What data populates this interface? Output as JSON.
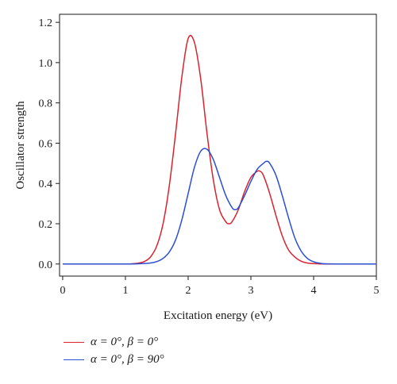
{
  "chart_data": {
    "type": "line",
    "title": "",
    "xlabel": "Excitation energy (eV)",
    "ylabel": "Oscillator strength",
    "xlim": [
      -0.05,
      5.0
    ],
    "ylim": [
      -0.06,
      1.24
    ],
    "x_ticks": [
      0,
      1,
      2,
      3,
      4,
      5
    ],
    "x_tick_labels": [
      "0",
      "1",
      "2",
      "3",
      "4",
      "5"
    ],
    "y_ticks": [
      0.0,
      0.2,
      0.4,
      0.6,
      0.8,
      1.0,
      1.2
    ],
    "y_tick_labels": [
      "0.0",
      "0.2",
      "0.4",
      "0.6",
      "0.8",
      "1.0",
      "1.2"
    ],
    "grid": false,
    "legend_position": "bottom-left",
    "series": [
      {
        "name": "α = 0°, β = 0°",
        "color": "#d9232e",
        "x": [
          0.0,
          0.5,
          1.0,
          1.1,
          1.2,
          1.3,
          1.4,
          1.5,
          1.6,
          1.7,
          1.8,
          1.9,
          2.0,
          2.1,
          2.2,
          2.3,
          2.4,
          2.5,
          2.6,
          2.65,
          2.7,
          2.8,
          2.9,
          3.0,
          3.1,
          3.15,
          3.2,
          3.3,
          3.4,
          3.5,
          3.6,
          3.7,
          3.8,
          3.9,
          4.0,
          4.2,
          4.5,
          5.0
        ],
        "y": [
          0.0,
          0.0,
          0.0,
          0.001,
          0.004,
          0.012,
          0.035,
          0.09,
          0.2,
          0.39,
          0.65,
          0.93,
          1.12,
          1.1,
          0.92,
          0.65,
          0.42,
          0.27,
          0.21,
          0.2,
          0.21,
          0.27,
          0.36,
          0.43,
          0.46,
          0.46,
          0.44,
          0.35,
          0.24,
          0.14,
          0.07,
          0.035,
          0.014,
          0.005,
          0.002,
          0.0,
          0.0,
          0.0
        ]
      },
      {
        "name": "α = 0°, β = 90°",
        "color": "#2b4fd4",
        "x": [
          0.0,
          0.5,
          1.0,
          1.2,
          1.4,
          1.5,
          1.6,
          1.7,
          1.8,
          1.9,
          2.0,
          2.1,
          2.2,
          2.3,
          2.4,
          2.5,
          2.6,
          2.7,
          2.75,
          2.8,
          2.9,
          3.0,
          3.1,
          3.2,
          3.25,
          3.3,
          3.4,
          3.5,
          3.6,
          3.7,
          3.8,
          3.9,
          4.0,
          4.1,
          4.2,
          4.5,
          5.0
        ],
        "y": [
          0.0,
          0.0,
          0.0,
          0.001,
          0.005,
          0.012,
          0.028,
          0.06,
          0.12,
          0.22,
          0.35,
          0.48,
          0.56,
          0.57,
          0.52,
          0.43,
          0.34,
          0.28,
          0.27,
          0.28,
          0.34,
          0.41,
          0.47,
          0.5,
          0.51,
          0.5,
          0.44,
          0.34,
          0.23,
          0.13,
          0.065,
          0.028,
          0.011,
          0.004,
          0.001,
          0.0,
          0.0
        ]
      }
    ]
  }
}
